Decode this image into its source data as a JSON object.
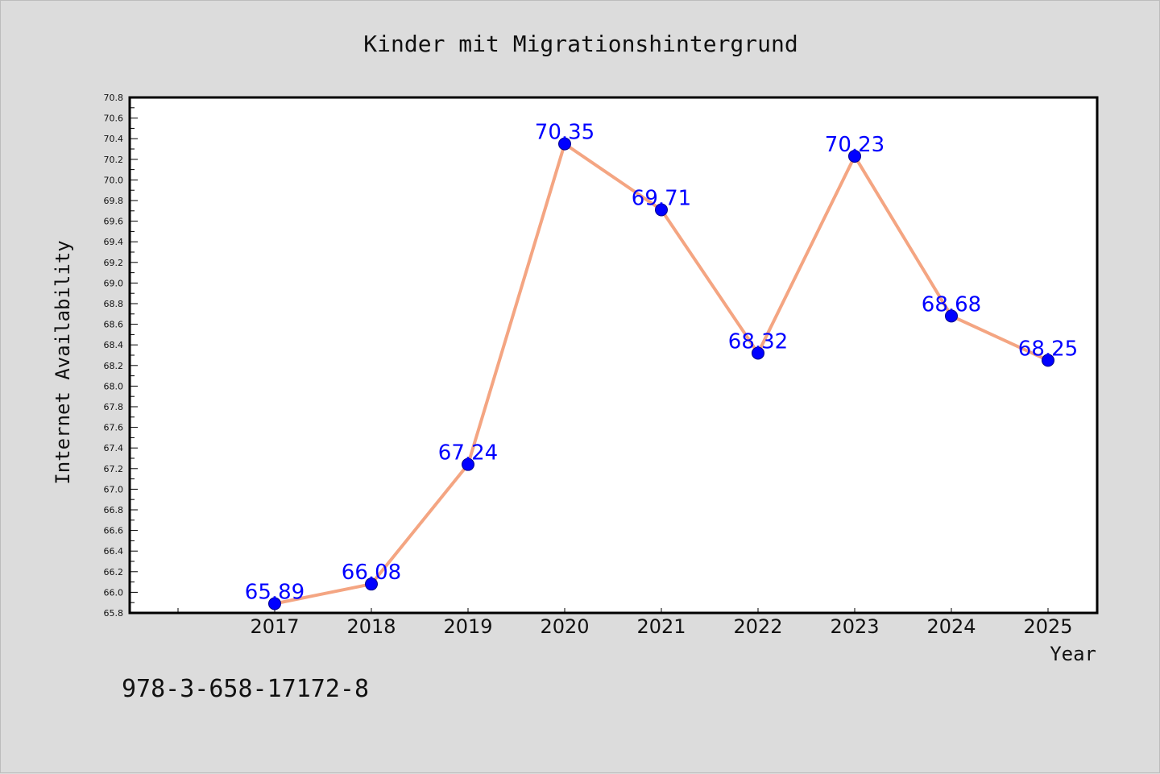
{
  "colors": {
    "background": "#dcdcdc",
    "plot_background": "#ffffff",
    "line": "#f4a582",
    "marker": "#0000ff",
    "data_label": "#0000ff",
    "axis": "#000000"
  },
  "footer": {
    "isbn": "978-3-658-17172-8"
  },
  "chart_data": {
    "type": "line",
    "title": "Kinder mit Migrationshintergrund",
    "xlabel": "Year",
    "ylabel": "Internet Availability",
    "categories": [
      "2017",
      "2018",
      "2019",
      "2020",
      "2021",
      "2022",
      "2023",
      "2024",
      "2025"
    ],
    "series": [
      {
        "values": [
          65.89,
          66.08,
          67.24,
          70.35,
          69.71,
          68.32,
          70.23,
          68.68,
          68.25
        ],
        "labels": [
          "65.89",
          "66.08",
          "67.24",
          "70.35",
          "69.71",
          "68.32",
          "70.23",
          "68.68",
          "68.25"
        ]
      }
    ],
    "ylim": [
      65.8,
      70.8
    ],
    "yticks": [
      "65.8",
      "66.0",
      "66.2",
      "66.4",
      "66.6",
      "66.8",
      "67.0",
      "67.2",
      "67.4",
      "67.6",
      "67.8",
      "68.0",
      "68.2",
      "68.4",
      "68.6",
      "68.8",
      "69.0",
      "69.2",
      "69.4",
      "69.6",
      "69.8",
      "70.0",
      "70.2",
      "70.4",
      "70.6",
      "70.8"
    ],
    "grid": false,
    "legend": "none"
  }
}
